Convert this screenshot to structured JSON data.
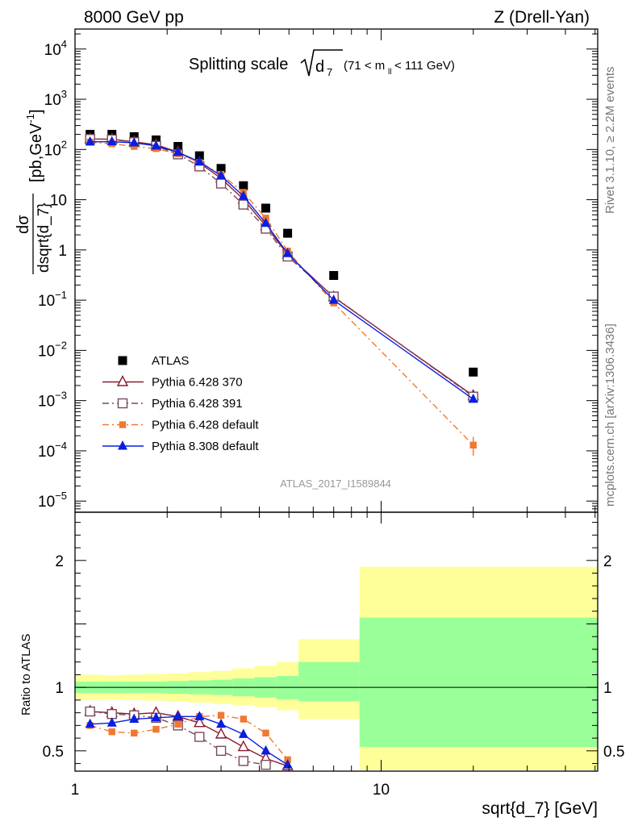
{
  "header": {
    "energy_label": "8000 GeV pp",
    "process_label": "Z (Drell-Yan)"
  },
  "side_labels": {
    "rivet": "Rivet 3.1.10, ≥ 2.2M events",
    "mcplots": "mcplots.cern.ch [arXiv:1306.3436]"
  },
  "chart_data": [
    {
      "type": "scatter",
      "panel": "main",
      "title": "Splitting scale √d₇ (71 < mₗₗ < 111 GeV)",
      "title_parts": {
        "prefix": "Splitting scale",
        "var": "d",
        "sub": "7",
        "range_open": "(71 < m",
        "range_sub": "ll",
        "range_close": " < 111 GeV)"
      },
      "ylabel": "dσ / dsqrt{d_7} [pb,GeV⁻¹]",
      "ylabel_parts": {
        "num": "dσ",
        "den": "dsqrt{d_7}",
        "unit": "[pb,GeV",
        "exp": "-1",
        "close": "]"
      },
      "xscale": "log",
      "yscale": "log",
      "xlim": [
        1,
        51
      ],
      "ylim": [
        6e-06,
        25000
      ],
      "y_ticks": [
        {
          "value": 10000,
          "base": "10",
          "exp": "4"
        },
        {
          "value": 1000,
          "base": "10",
          "exp": "3"
        },
        {
          "value": 100,
          "base": "10",
          "exp": "2"
        },
        {
          "value": 10,
          "base": "10",
          "exp": ""
        },
        {
          "value": 1,
          "base": "1",
          "exp": ""
        },
        {
          "value": 0.1,
          "base": "10",
          "exp": "−1"
        },
        {
          "value": 0.01,
          "base": "10",
          "exp": "−2"
        },
        {
          "value": 0.001,
          "base": "10",
          "exp": "−3"
        },
        {
          "value": 0.0001,
          "base": "10",
          "exp": "−4"
        },
        {
          "value": 1e-05,
          "base": "10",
          "exp": "−5"
        }
      ],
      "watermark": "ATLAS_2017_I1589844",
      "legend_position": "lower-left",
      "series": [
        {
          "name": "ATLAS",
          "marker": "square",
          "color": "#000000",
          "x": [
            1.12,
            1.32,
            1.56,
            1.84,
            2.17,
            2.55,
            3.0,
            3.55,
            4.2,
            4.95,
            7.0,
            20.0
          ],
          "y": [
            200,
            200,
            180,
            155,
            115,
            75,
            42,
            19,
            6.8,
            2.15,
            0.31,
            0.0037
          ]
        },
        {
          "name": "Pythia 6.428 370",
          "marker": "triangle-open",
          "color": "#8b1a2b",
          "dash": "solid",
          "x": [
            1.12,
            1.32,
            1.56,
            1.84,
            2.17,
            2.55,
            3.0,
            3.55,
            4.2,
            4.95,
            7.0,
            20.0
          ],
          "y": [
            162,
            160,
            142,
            124,
            89,
            54,
            26.5,
            10.2,
            3.0,
            0.82,
            0.115,
            0.00125
          ]
        },
        {
          "name": "Pythia 6.428 391",
          "marker": "square-open",
          "color": "#7a4a5a",
          "dash": "dashdot",
          "x": [
            1.12,
            1.32,
            1.56,
            1.84,
            2.17,
            2.55,
            3.0,
            3.55,
            4.2,
            4.95,
            7.0,
            20.0
          ],
          "y": [
            162,
            158,
            140,
            118,
            80,
            46,
            21,
            8.0,
            2.65,
            0.74,
            0.118,
            0.0012
          ]
        },
        {
          "name": "Pythia 6.428 default",
          "marker": "square-filled",
          "color": "#f07830",
          "dash": "dashdot",
          "x": [
            1.12,
            1.32,
            1.56,
            1.84,
            2.17,
            2.55,
            3.0,
            3.55,
            4.2,
            4.95,
            7.0,
            20.0
          ],
          "y": [
            140,
            130,
            115,
            104,
            82,
            55,
            32,
            14,
            4.3,
            0.95,
            0.088,
            0.00013
          ]
        },
        {
          "name": "Pythia 8.308 default",
          "marker": "triangle-filled",
          "color": "#0a1ee0",
          "dash": "solid",
          "x": [
            1.12,
            1.32,
            1.56,
            1.84,
            2.17,
            2.55,
            3.0,
            3.55,
            4.2,
            4.95,
            7.0,
            20.0
          ],
          "y": [
            142,
            143,
            136,
            118,
            88,
            57,
            30,
            11.8,
            3.4,
            0.85,
            0.1,
            0.00107
          ]
        }
      ]
    },
    {
      "type": "line",
      "panel": "ratio",
      "ylabel": "Ratio to ATLAS",
      "xlabel": "sqrt{d_7} [GeV]",
      "xscale": "log",
      "xlim": [
        1,
        51
      ],
      "ylim": [
        0.34,
        2.38
      ],
      "y_ticks": [
        {
          "value": 0.5,
          "label": "0.5"
        },
        {
          "value": 1,
          "label": "1"
        },
        {
          "value": 2,
          "label": "2"
        }
      ],
      "x_ticks": [
        {
          "value": 1,
          "label": "1"
        },
        {
          "value": 10,
          "label": "10"
        }
      ],
      "bands": {
        "edges": [
          1,
          1.22,
          1.44,
          1.69,
          2.0,
          2.35,
          2.78,
          3.27,
          3.86,
          4.55,
          5.37,
          8.5,
          51
        ],
        "total": [
          [
            0.9,
            1.1
          ],
          [
            0.905,
            1.095
          ],
          [
            0.9,
            1.1
          ],
          [
            0.895,
            1.105
          ],
          [
            0.89,
            1.11
          ],
          [
            0.88,
            1.12
          ],
          [
            0.87,
            1.13
          ],
          [
            0.86,
            1.15
          ],
          [
            0.845,
            1.17
          ],
          [
            0.82,
            1.2
          ],
          [
            0.75,
            1.38
          ],
          [
            0.35,
            1.95
          ]
        ],
        "stat": [
          [
            0.955,
            1.045
          ],
          [
            0.955,
            1.045
          ],
          [
            0.955,
            1.045
          ],
          [
            0.955,
            1.045
          ],
          [
            0.95,
            1.05
          ],
          [
            0.945,
            1.055
          ],
          [
            0.94,
            1.06
          ],
          [
            0.93,
            1.07
          ],
          [
            0.92,
            1.08
          ],
          [
            0.905,
            1.09
          ],
          [
            0.89,
            1.2
          ],
          [
            0.53,
            1.55
          ]
        ]
      },
      "series": [
        {
          "name": "Pythia 6.428 370",
          "marker": "triangle-open",
          "color": "#8b1a2b",
          "dash": "solid",
          "x": [
            1.12,
            1.32,
            1.56,
            1.84,
            2.17,
            2.55,
            3.0,
            3.55,
            4.2,
            4.95
          ],
          "y": [
            0.81,
            0.8,
            0.79,
            0.8,
            0.77,
            0.72,
            0.63,
            0.53,
            0.44,
            0.38
          ]
        },
        {
          "name": "Pythia 6.428 391",
          "marker": "square-open",
          "color": "#7a4a5a",
          "dash": "dashdot",
          "x": [
            1.12,
            1.32,
            1.56,
            1.84,
            2.17,
            2.55,
            3.0,
            3.55,
            4.2
          ],
          "y": [
            0.81,
            0.79,
            0.78,
            0.76,
            0.7,
            0.61,
            0.5,
            0.42,
            0.39
          ]
        },
        {
          "name": "Pythia 6.428 default",
          "marker": "square-filled",
          "color": "#f07830",
          "dash": "dashdot",
          "x": [
            1.12,
            1.32,
            1.56,
            1.84,
            2.17,
            2.55,
            3.0,
            3.55,
            4.2,
            4.95
          ],
          "y": [
            0.7,
            0.65,
            0.64,
            0.67,
            0.71,
            0.77,
            0.78,
            0.75,
            0.64,
            0.43
          ]
        },
        {
          "name": "Pythia 8.308 default",
          "marker": "triangle-filled",
          "color": "#0a1ee0",
          "dash": "solid",
          "x": [
            1.12,
            1.32,
            1.56,
            1.84,
            2.17,
            2.55,
            3.0,
            3.55,
            4.2,
            4.95
          ],
          "y": [
            0.71,
            0.72,
            0.75,
            0.76,
            0.77,
            0.77,
            0.71,
            0.63,
            0.5,
            0.39
          ]
        }
      ]
    }
  ]
}
